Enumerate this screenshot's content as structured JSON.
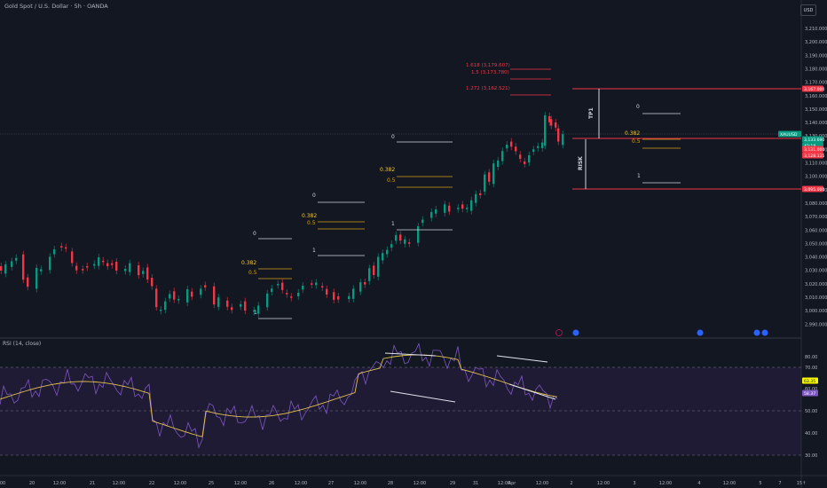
{
  "header": {
    "title": "Gold Spot / U.S. Dollar · 5h · OANDA",
    "currency": "USD"
  },
  "price_axis": {
    "labels": [
      "3,210.000",
      "3,200.000",
      "3,190.000",
      "3,180.000",
      "3,170.000",
      "3,160.000",
      "3,150.000",
      "3,140.000",
      "3,130.000",
      "3,120.000",
      "3,110.000",
      "3,100.000",
      "3,090.000",
      "3,080.000",
      "3,070.000",
      "3,060.000",
      "3,050.000",
      "3,040.000",
      "3,030.000",
      "3,020.000",
      "3,010.000",
      "3,000.000",
      "2,990.000"
    ],
    "tags": [
      {
        "text": "3,167.000",
        "color": "#f23645"
      },
      {
        "text": "XAUUSD",
        "color": "#089981"
      },
      {
        "text": "3,133.690",
        "color": "#089981"
      },
      {
        "text": "42:18",
        "color": "#089981"
      },
      {
        "text": "3,131.000",
        "color": "#f23645"
      },
      {
        "text": "3,128.135",
        "color": "#f23645"
      },
      {
        "text": "3,095.000",
        "color": "#f23645"
      }
    ]
  },
  "time_axis": {
    "labels": [
      "00",
      "20",
      "12:00",
      "21",
      "12:00",
      "22",
      "12:00",
      "25",
      "12:00",
      "26",
      "12:00",
      "27",
      "12:00",
      "28",
      "12:00",
      "29",
      "31",
      "12:00",
      "Apr",
      "12:00",
      "2",
      "12:00",
      "3",
      "12:00",
      "4",
      "12:00",
      "5",
      "7",
      "15↑"
    ]
  },
  "fib_sets": [
    {
      "labels": [
        "0",
        "0.382",
        "0.5",
        "1"
      ]
    },
    {
      "labels": [
        "0",
        "0.382",
        "0.5",
        "1"
      ]
    },
    {
      "labels": [
        "0",
        "0.382",
        "0.5",
        "1"
      ]
    },
    {
      "labels": [
        "0",
        "0.382",
        "0.5",
        "1"
      ]
    }
  ],
  "extensions": [
    "1.618 (3,179.607)",
    "1.5 (3,173.780)",
    "1.272 (3,162.521)"
  ],
  "trade_labels": {
    "tp": "TP1",
    "risk": "RISK"
  },
  "rsi": {
    "title": "RSI (14, close)",
    "axis": [
      "80.00",
      "70.00",
      "60.00",
      "50.00",
      "40.00",
      "30.00"
    ],
    "value_tags": [
      {
        "text": "63.35",
        "color": "#f7f700"
      },
      {
        "text": "58.37",
        "color": "#7e57c2"
      }
    ]
  },
  "colors": {
    "up": "#089981",
    "down": "#f23645",
    "fib_level": "#b8860b",
    "rsi_line": "#7e57c2",
    "rsi_ma": "#e2c04c"
  }
}
